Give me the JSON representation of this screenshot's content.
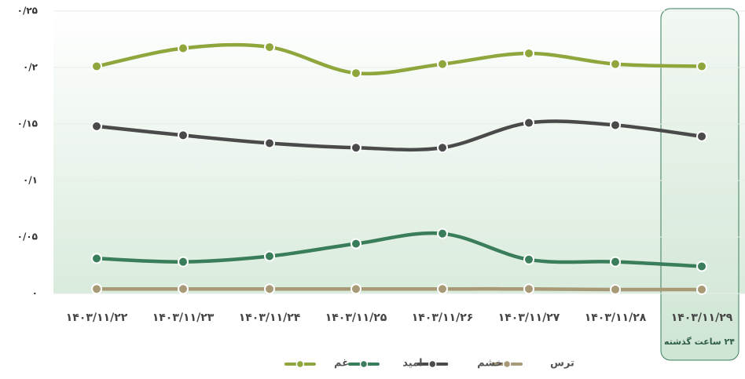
{
  "chart_data": {
    "type": "line",
    "categories": [
      "۱۴۰۳/۱۱/۲۲",
      "۱۴۰۳/۱۱/۲۳",
      "۱۴۰۳/۱۱/۲۴",
      "۱۴۰۳/۱۱/۲۵",
      "۱۴۰۳/۱۱/۲۶",
      "۱۴۰۳/۱۱/۲۷",
      "۱۴۰۳/۱۱/۲۸",
      "۱۴۰۳/۱۱/۲۹"
    ],
    "annotation": "۲۴ ساعت گذشته",
    "series": [
      {
        "name": "ترس",
        "color": "#a89a76",
        "values": [
          0.004,
          0.004,
          0.004,
          0.004,
          0.004,
          0.004,
          0.0035,
          0.0035
        ]
      },
      {
        "name": "خشم",
        "color": "#4a4a4a",
        "values": [
          0.148,
          0.14,
          0.133,
          0.129,
          0.129,
          0.151,
          0.149,
          0.139
        ]
      },
      {
        "name": "امید",
        "color": "#3a7d5a",
        "values": [
          0.031,
          0.028,
          0.033,
          0.044,
          0.053,
          0.03,
          0.028,
          0.024
        ]
      },
      {
        "name": "غم",
        "color": "#8fa63c",
        "values": [
          0.201,
          0.217,
          0.218,
          0.195,
          0.203,
          0.2125,
          0.203,
          0.201
        ]
      }
    ],
    "ylim": [
      0,
      0.25
    ],
    "yticks": [
      {
        "value": 0,
        "label": "۰"
      },
      {
        "value": 0.05,
        "label": "۰/۰۵"
      },
      {
        "value": 0.1,
        "label": "۰/۱"
      },
      {
        "value": 0.15,
        "label": "۰/۱۵"
      },
      {
        "value": 0.2,
        "label": "۰/۲"
      },
      {
        "value": 0.25,
        "label": "۰/۲۵"
      }
    ],
    "grid": true
  }
}
